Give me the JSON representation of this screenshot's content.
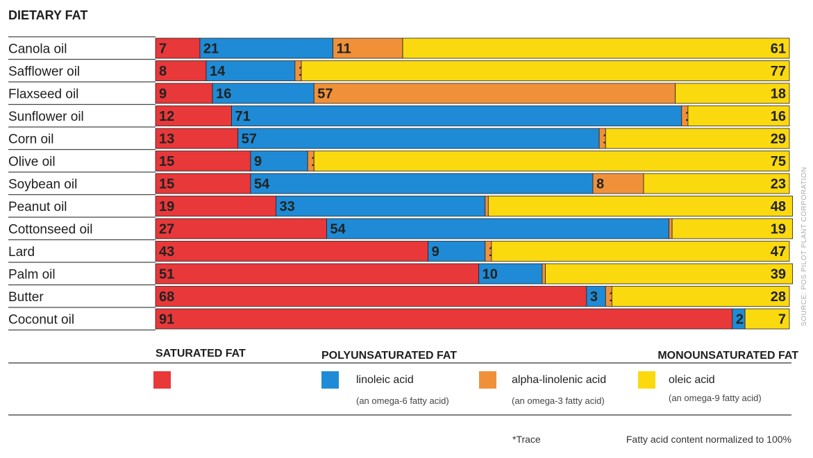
{
  "chart_data": {
    "type": "bar",
    "orientation": "horizontal",
    "stacked": true,
    "title": "DIETARY FAT",
    "categories": [
      "Canola oil",
      "Safflower oil",
      "Flaxseed oil",
      "Sunflower oil",
      "Corn oil",
      "Olive oil",
      "Soybean oil",
      "Peanut oil",
      "Cottonseed oil",
      "Lard",
      "Palm oil",
      "Butter",
      "Coconut oil"
    ],
    "series": [
      {
        "name": "SATURATED FAT",
        "key": "saturated",
        "color": "#e8383a",
        "values": [
          7,
          8,
          9,
          12,
          13,
          15,
          15,
          19,
          27,
          43,
          51,
          68,
          91
        ],
        "labels": [
          "7",
          "8",
          "9",
          "12",
          "13",
          "15",
          "15",
          "19",
          "27",
          "43",
          "51",
          "68",
          "91"
        ]
      },
      {
        "name": "linoleic acid",
        "key": "linoleic",
        "color": "#1f8bd6",
        "values": [
          21,
          14,
          16,
          71,
          57,
          9,
          54,
          33,
          54,
          9,
          10,
          3,
          2
        ],
        "labels": [
          "21",
          "14",
          "16",
          "71",
          "57",
          "9",
          "54",
          "33",
          "54",
          "9",
          "10",
          "3",
          "2"
        ]
      },
      {
        "name": "alpha-linolenic acid",
        "key": "alpha",
        "color": "#f0913a",
        "values": [
          11,
          1,
          57,
          1,
          1,
          1,
          8,
          0.5,
          0.5,
          1,
          0.5,
          1,
          0
        ],
        "labels": [
          "11",
          "1",
          "57",
          "1",
          "1",
          "1",
          "8",
          "*",
          "*",
          "1",
          "*",
          "1",
          ""
        ]
      },
      {
        "name": "oleic acid",
        "key": "oleic",
        "color": "#fbd90f",
        "values": [
          61,
          77,
          18,
          16,
          29,
          75,
          23,
          48,
          19,
          47,
          39,
          28,
          7
        ],
        "labels": [
          "61",
          "77",
          "18",
          "16",
          "29",
          "75",
          "23",
          "48",
          "19",
          "47",
          "39",
          "28",
          "7"
        ]
      }
    ],
    "xlim": [
      0,
      100
    ]
  },
  "legend": {
    "saturated_heading": "SATURATED FAT",
    "polyunsaturated_heading": "POLYUNSATURATED FAT",
    "monounsaturated_heading": "MONOUNSATURATED FAT",
    "linoleic_name": "linoleic acid",
    "linoleic_sub": "(an omega-6 fatty acid)",
    "alpha_name": "alpha-linolenic acid",
    "alpha_sub": "(an omega-3 fatty acid)",
    "oleic_name": "oleic acid",
    "oleic_sub": "(an omega-9 fatty acid)"
  },
  "notes": {
    "trace": "*Trace",
    "normalized": "Fatty acid content normalized to 100%",
    "source": "SOURCE: POS PILOT PLANT CORPORATION"
  },
  "colors": {
    "saturated": "#e8383a",
    "linoleic": "#1f8bd6",
    "alpha": "#f0913a",
    "oleic": "#fbd90f"
  }
}
